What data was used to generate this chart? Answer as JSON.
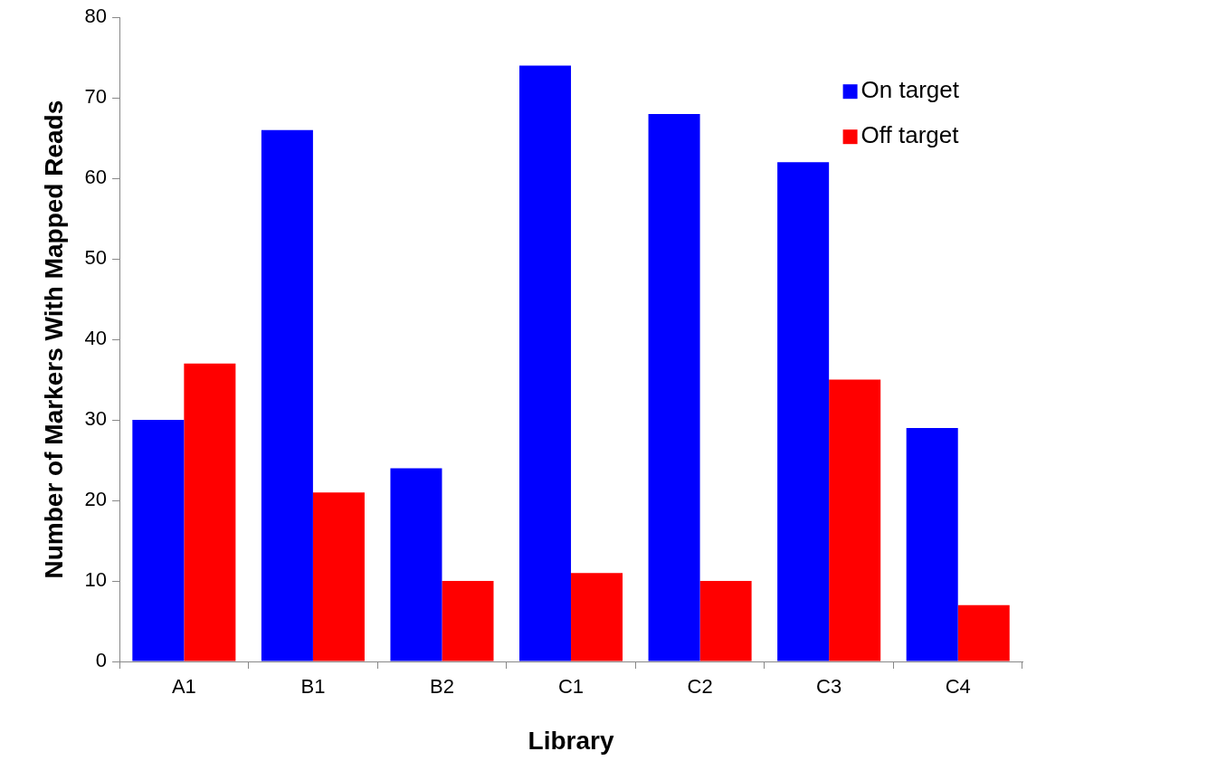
{
  "chart_data": {
    "type": "bar",
    "xlabel": "Library",
    "ylabel": "Number of Markers With Mapped Reads",
    "categories": [
      "A1",
      "B1",
      "B2",
      "C1",
      "C2",
      "C3",
      "C4"
    ],
    "series": [
      {
        "name": "On target",
        "color": "#0000ff",
        "values": [
          30,
          66,
          24,
          74,
          68,
          62,
          29
        ]
      },
      {
        "name": "Off target",
        "color": "#ff0000",
        "values": [
          37,
          21,
          10,
          11,
          10,
          35,
          7
        ]
      }
    ],
    "ylim": [
      0,
      80
    ],
    "yticks": [
      0,
      10,
      20,
      30,
      40,
      50,
      60,
      70,
      80
    ],
    "grid": false,
    "legend": "top right"
  }
}
